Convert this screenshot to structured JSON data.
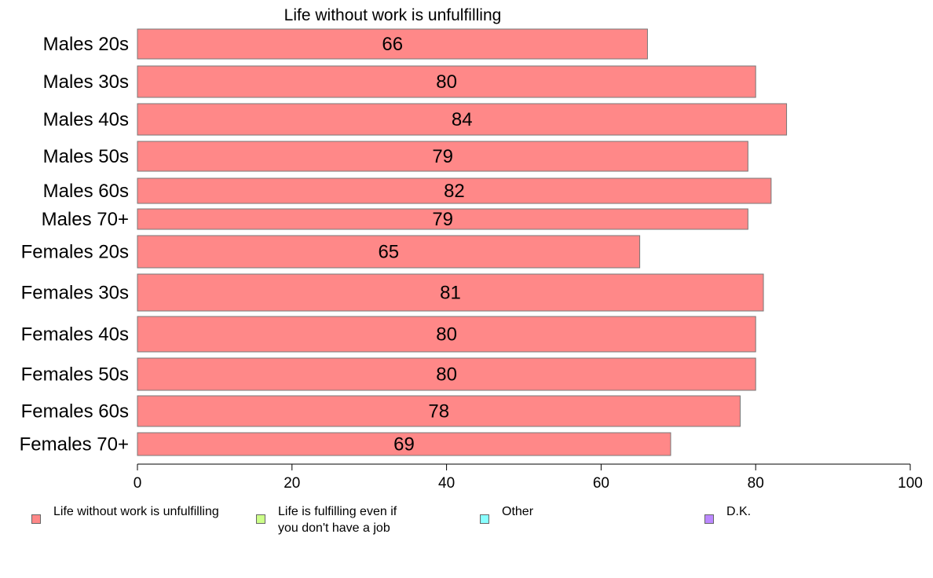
{
  "chart_data": {
    "type": "bar",
    "orientation": "horizontal",
    "title": "Life without work is unfulfilling",
    "categories": [
      "Males 20s",
      "Males 30s",
      "Males 40s",
      "Males 50s",
      "Males 60s",
      "Males 70+",
      "Females 20s",
      "Females 30s",
      "Females 40s",
      "Females 50s",
      "Females 60s",
      "Females 70+"
    ],
    "values": [
      66,
      80,
      84,
      79,
      82,
      79,
      65,
      81,
      80,
      80,
      78,
      69
    ],
    "data_labels": [
      "66",
      "80",
      "84",
      "79",
      "82",
      "79",
      "65",
      "81",
      "80",
      "80",
      "78",
      "69"
    ],
    "xlim": [
      0,
      100
    ],
    "xticks": [
      0,
      20,
      40,
      60,
      80,
      100
    ],
    "xtick_labels": [
      "0",
      "20",
      "40",
      "60",
      "80",
      "100"
    ],
    "grid": false,
    "bar_color": "#ff8888",
    "legend_position": "bottom",
    "legend": [
      {
        "label": "Life without work is unfulfilling",
        "color": "#ff8888"
      },
      {
        "label": "Life is fulfilling even if\nyou don't have a job",
        "color": "#ccff88"
      },
      {
        "label": "Other",
        "color": "#88ffff"
      },
      {
        "label": "D.K.",
        "color": "#bb88ff"
      }
    ]
  }
}
